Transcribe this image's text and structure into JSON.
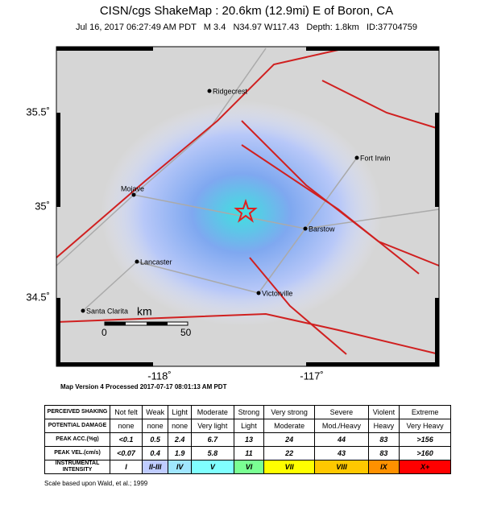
{
  "header": {
    "title": "CISN/cgs ShakeMap : 20.6km (12.9mi) E of Boron, CA",
    "subtitle": "Jul 16, 2017 06:27:49 AM PDT   M 3.4   N34.97 W117.43   Depth: 1.8km   ID:37704759"
  },
  "map": {
    "lat_labels": [
      "35.5˚",
      "35˚",
      "34.5˚"
    ],
    "lon_labels": [
      "-118˚",
      "-117˚"
    ],
    "cities": [
      "Ridgecrest",
      "Fort Irwin",
      "Mojave",
      "Barstow",
      "Lancaster",
      "Victorville",
      "Santa Clarita"
    ],
    "scale": {
      "unit": "km",
      "ticks": [
        "0",
        "50"
      ]
    }
  },
  "footer": {
    "version": "Map Version 4 Processed 2017-07-17 08:01:13 AM PDT"
  },
  "table": {
    "rows": [
      {
        "label": "PERCEIVED SHAKING",
        "cells": [
          "Not felt",
          "Weak",
          "Light",
          "Moderate",
          "Strong",
          "Very strong",
          "Severe",
          "Violent",
          "Extreme"
        ]
      },
      {
        "label": "POTENTIAL DAMAGE",
        "cells": [
          "none",
          "none",
          "none",
          "Very light",
          "Light",
          "Moderate",
          "Mod./Heavy",
          "Heavy",
          "Very Heavy"
        ]
      },
      {
        "label": "PEAK ACC.(%g)",
        "cells": [
          "<0.1",
          "0.5",
          "2.4",
          "6.7",
          "13",
          "24",
          "44",
          "83",
          ">156"
        ]
      },
      {
        "label": "PEAK VEL.(cm/s)",
        "cells": [
          "<0.07",
          "0.4",
          "1.9",
          "5.8",
          "11",
          "22",
          "43",
          "83",
          ">160"
        ]
      },
      {
        "label": "INSTRUMENTAL INTENSITY",
        "cells": [
          "I",
          "II-III",
          "IV",
          "V",
          "VI",
          "VII",
          "VIII",
          "IX",
          "X+"
        ]
      }
    ],
    "intensity_colors": [
      "#ffffff",
      "#bfccff",
      "#a0e6ff",
      "#80ffff",
      "#7aff93",
      "#ffff00",
      "#ffc800",
      "#ff9100",
      "#ff0000"
    ]
  },
  "note": "Scale based upon Wald, et al.; 1999"
}
